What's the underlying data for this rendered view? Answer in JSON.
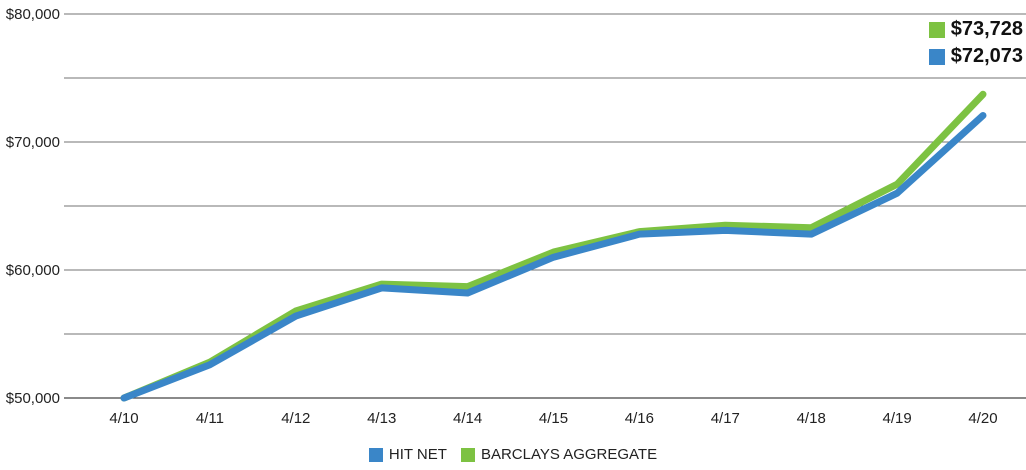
{
  "chart_data": {
    "type": "line",
    "categories": [
      "4/10",
      "4/11",
      "4/12",
      "4/13",
      "4/14",
      "4/15",
      "4/16",
      "4/17",
      "4/18",
      "4/19",
      "4/20"
    ],
    "series": [
      {
        "name": "HIT NET",
        "color": "#3a86c8",
        "values": [
          50000,
          52600,
          56400,
          58600,
          58200,
          61000,
          62800,
          63100,
          62800,
          66000,
          72073
        ]
      },
      {
        "name": "BARCLAYS AGGREGATE",
        "color": "#7dc242",
        "values": [
          50000,
          52800,
          56800,
          58900,
          58700,
          61400,
          63000,
          63500,
          63300,
          66700,
          73728
        ]
      }
    ],
    "y_ticks": [
      {
        "value": 50000,
        "label": "$50,000"
      },
      {
        "value": 60000,
        "label": "$60,000"
      },
      {
        "value": 70000,
        "label": "$70,000"
      },
      {
        "value": 80000,
        "label": "$80,000"
      }
    ],
    "gridlines": [
      50000,
      55000,
      60000,
      65000,
      70000,
      75000,
      80000
    ],
    "ylim": [
      50000,
      80000
    ],
    "grid": true,
    "legend_position": "bottom-center",
    "end_labels": [
      {
        "series": "BARCLAYS AGGREGATE",
        "label": "$73,728",
        "color": "#7dc242"
      },
      {
        "series": "HIT NET",
        "label": "$72,073",
        "color": "#3a86c8"
      }
    ]
  }
}
